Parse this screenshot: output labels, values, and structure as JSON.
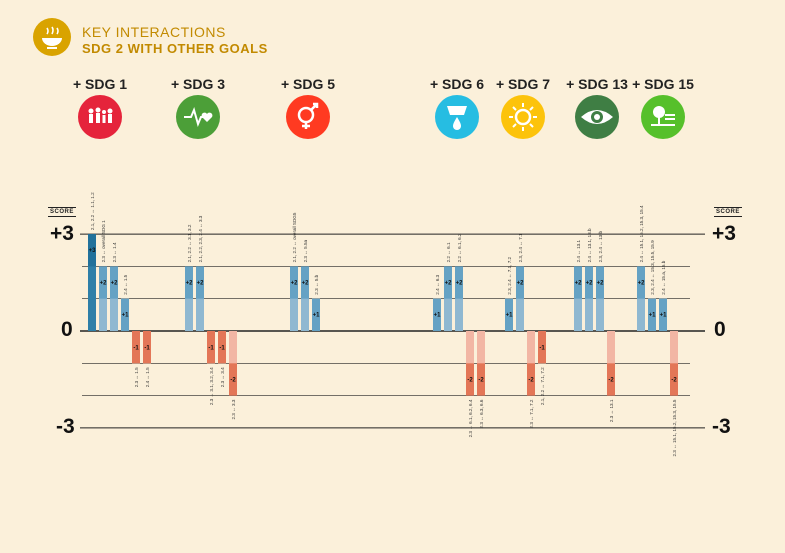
{
  "header": {
    "title_line1": "KEY INTERACTIONS",
    "title_line2": "SDG 2 WITH OTHER GOALS",
    "icon": "bowl-icon",
    "color": "#d9a300"
  },
  "goals": [
    {
      "label": "+ SDG 1",
      "icon": "family-icon",
      "color": "#e5243b"
    },
    {
      "label": "+ SDG 3",
      "icon": "heartbeat-icon",
      "color": "#4c9f38"
    },
    {
      "label": "+ SDG 5",
      "icon": "gender-icon",
      "color": "#ff3a21"
    },
    {
      "label": "+ SDG 6",
      "icon": "water-icon",
      "color": "#26bde2"
    },
    {
      "label": "+ SDG 7",
      "icon": "sun-icon",
      "color": "#fcc30b"
    },
    {
      "label": "+ SDG 13",
      "icon": "eye-globe-icon",
      "color": "#3f7e44"
    },
    {
      "label": "+ SDG 15",
      "icon": "tree-icon",
      "color": "#56c02b"
    }
  ],
  "score_label": "SCORE",
  "chart_data": {
    "type": "bar",
    "ylim": [
      -3,
      3
    ],
    "yticks": [
      "+3",
      "0",
      "-3"
    ],
    "colors": {
      "positive": "#8fb8d1",
      "positive_dark": "#2e7fa8",
      "negative": "#f2b6a4",
      "negative_dark": "#e06b4a"
    },
    "groups": [
      {
        "goal": "SDG 1",
        "bars": [
          {
            "value": 3,
            "label": "2.1, 2.2 ↔ 1.1, 1.2"
          },
          {
            "value": 2,
            "label": "2.3 ↔ overall SDG 1"
          },
          {
            "value": 2,
            "label": "2.3 ↔ 1.4"
          },
          {
            "value": 1,
            "label": "2.4 ↔ 1.5"
          },
          {
            "value": -1,
            "label": "2.3 ↔ 1.5"
          },
          {
            "value": -1,
            "label": "2.4 ↔ 1.5"
          }
        ]
      },
      {
        "goal": "SDG 3",
        "bars": [
          {
            "value": 2,
            "label": "2.1, 2.2 ↔ 3.1, 3.2"
          },
          {
            "value": 2,
            "label": "2.1, 2.2, 2.3, 2.4 ↔ 3.3"
          },
          {
            "value": -1,
            "label": "2.3 ↔ 3.1, 3.2, 3.4"
          },
          {
            "value": -1,
            "label": "2.3 ↔ 3.4"
          },
          {
            "value": -2,
            "label": "2.3 ↔ 3.3"
          }
        ]
      },
      {
        "goal": "SDG 5",
        "bars": [
          {
            "value": 2,
            "label": "2.1, 2.2 ↔ overall SDG5"
          },
          {
            "value": 2,
            "label": "2.3 ↔ 5.5a"
          },
          {
            "value": 1,
            "label": "2.3 ↔ 5.b"
          }
        ]
      },
      {
        "goal": "SDG 6",
        "bars": [
          {
            "value": 1,
            "label": "2.4 ↔ 6.3"
          },
          {
            "value": 2,
            "label": "2.2 ↔ 6.1"
          },
          {
            "value": 2,
            "label": "2.2 ↔ 6.1, 6.2"
          },
          {
            "value": -2,
            "label": "2.3 ↔ 6.1, 6.2, 6.4"
          },
          {
            "value": -2,
            "label": "2.3 ↔ 6.3, 6.6"
          }
        ]
      },
      {
        "goal": "SDG 7",
        "bars": [
          {
            "value": 1,
            "label": "2.3, 2.4 ↔ 7.1, 7.2"
          },
          {
            "value": 2,
            "label": "2.3, 2.4 ↔ 7.1"
          },
          {
            "value": -2,
            "label": "2.3 ↔ 7.1, 7.2"
          },
          {
            "value": -1,
            "label": "2.1, 2.2 ↔ 7.1, 7.2"
          }
        ]
      },
      {
        "goal": "SDG 13",
        "bars": [
          {
            "value": 2,
            "label": "2.4 ↔ 13.1"
          },
          {
            "value": 2,
            "label": "2.4 ↔ 13.1, 13.b"
          },
          {
            "value": 2,
            "label": "2.3, 2.4 ↔ 13.b"
          },
          {
            "value": -2,
            "label": "2.3 ↔ 13.1"
          }
        ]
      },
      {
        "goal": "SDG 15",
        "bars": [
          {
            "value": 2,
            "label": "2.4 ↔ 15.1, 15.2, 15.3, 15.4"
          },
          {
            "value": 1,
            "label": "2.3, 2.4 ↔ 15.3, 15.5, 15.9"
          },
          {
            "value": 1,
            "label": "2.4 ↔ 15.a, 15.b"
          },
          {
            "value": -2,
            "label": "2.3 ↔ 15.1, 15.2, 15.3, 15.5"
          }
        ]
      }
    ]
  }
}
